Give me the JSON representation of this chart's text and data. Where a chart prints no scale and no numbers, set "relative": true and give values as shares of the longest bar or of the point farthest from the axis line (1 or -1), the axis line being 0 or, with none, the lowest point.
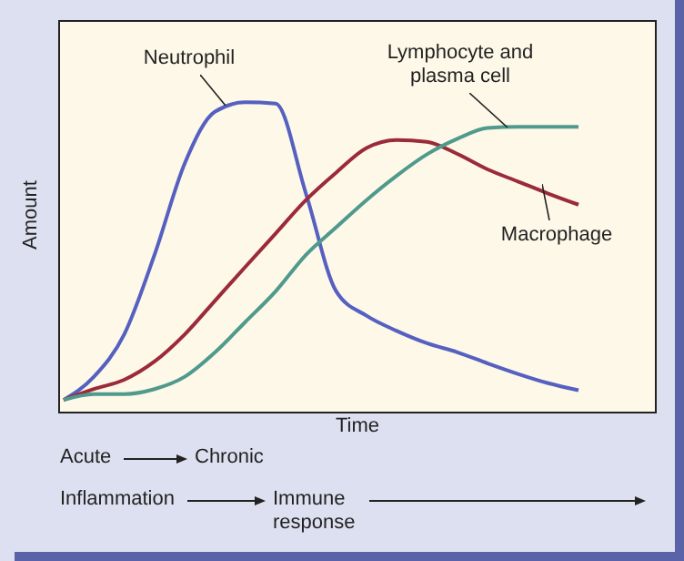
{
  "chart_data": {
    "type": "line",
    "xlabel": "Time",
    "ylabel": "Amount",
    "relative": true,
    "marker": "none",
    "line_style": "solid",
    "categories": [
      null,
      null,
      null,
      null,
      null,
      null,
      null,
      null,
      null,
      null,
      null,
      null,
      null,
      null,
      null,
      null,
      null,
      null
    ],
    "series": [
      {
        "name": "Neutrophil",
        "color": "#5560c0",
        "values": [
          0.038,
          0.113,
          0.25,
          0.507,
          0.803,
          0.97,
          1,
          0.996,
          0.705,
          0.389,
          0.31,
          0.261,
          0.221,
          0.192,
          0.156,
          0.122,
          0.092,
          0.069
        ]
      },
      {
        "name": "Macrophage",
        "color": "#9b2a3a",
        "values": [
          0.038,
          0.073,
          0.103,
          0.162,
          0.25,
          0.359,
          0.468,
          0.576,
          0.684,
          0.773,
          0.852,
          0.878,
          0.872,
          0.833,
          0.783,
          0.744,
          0.705,
          0.669
        ]
      },
      {
        "name": "Lymphocyte and plasma cell",
        "color": "#4f9a8c",
        "values": [
          0.038,
          0.057,
          0.057,
          0.073,
          0.113,
          0.192,
          0.29,
          0.389,
          0.507,
          0.596,
          0.684,
          0.763,
          0.832,
          0.882,
          0.917,
          0.921,
          0.921,
          0.921
        ]
      }
    ],
    "annotations": [
      "Acute",
      "Chronic",
      "Inflammation",
      "Immune response"
    ]
  }
}
